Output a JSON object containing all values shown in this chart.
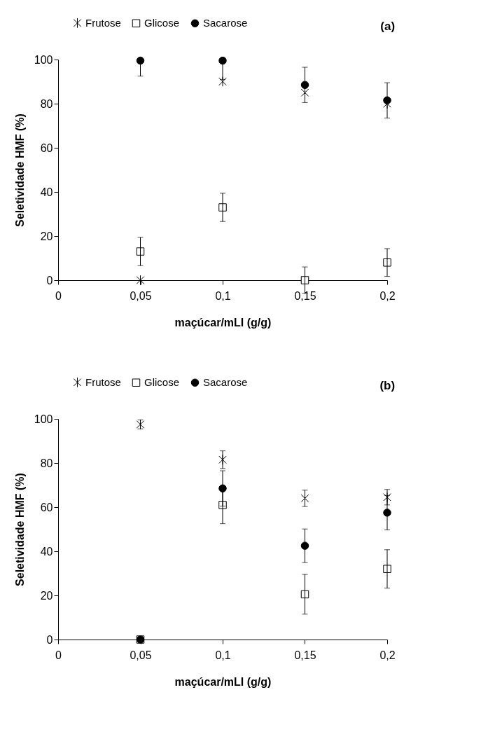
{
  "chart_data": [
    {
      "type": "scatter",
      "title": "(a)",
      "xlabel": "maçúcar/mLI (g/g)",
      "ylabel": "Seletividade HMF (%)",
      "x": [
        0.05,
        0.1,
        0.15,
        0.2
      ],
      "xlim": [
        0,
        0.2
      ],
      "ylim": [
        0,
        100
      ],
      "xticks": [
        0,
        {
          "value": 0.05,
          "label": "0,05"
        },
        {
          "value": 0.1,
          "label": "0,1"
        },
        {
          "value": 0.15,
          "label": "0,15"
        },
        {
          "value": 0.2,
          "label": "0,2"
        }
      ],
      "yticks": [
        0,
        20,
        40,
        60,
        80,
        100
      ],
      "grid": false,
      "legend": "top",
      "series": [
        {
          "name": "Frutose",
          "color": "#000000",
          "marker": "cross",
          "values": [
            0,
            90,
            85,
            80
          ],
          "errors": [
            null,
            null,
            null,
            null
          ]
        },
        {
          "name": "Glicose",
          "color": "#000000",
          "marker": "square",
          "values": [
            13,
            33,
            0,
            8
          ],
          "errors": [
            6.4,
            6.4,
            6,
            6.3
          ]
        },
        {
          "name": "Sacarose",
          "color": "#000000",
          "marker": "circle",
          "values": [
            99.5,
            99.5,
            88.5,
            81.5
          ],
          "errors": [
            [
              92.5,
              99.5
            ],
            [
              91,
              99.5
            ],
            8,
            8
          ]
        }
      ]
    },
    {
      "type": "scatter",
      "title": "(b)",
      "xlabel": "maçúcar/mLI (g/g)",
      "ylabel": "Seletividade HMF (%)",
      "x": [
        0.05,
        0.1,
        0.15,
        0.2
      ],
      "xlim": [
        0,
        0.2
      ],
      "ylim": [
        0,
        100
      ],
      "xticks": [
        0,
        {
          "value": 0.05,
          "label": "0,05"
        },
        {
          "value": 0.1,
          "label": "0,1"
        },
        {
          "value": 0.15,
          "label": "0,15"
        },
        {
          "value": 0.2,
          "label": "0,2"
        }
      ],
      "yticks": [
        0,
        20,
        40,
        60,
        80,
        100
      ],
      "grid": false,
      "legend": "top",
      "series": [
        {
          "name": "Frutose",
          "color": "#000000",
          "marker": "cross",
          "values": [
            97.5,
            81.5,
            64,
            64.5
          ],
          "errors": [
            2,
            4,
            3.7,
            3.5
          ]
        },
        {
          "name": "Glicose",
          "color": "#000000",
          "marker": "square",
          "values": [
            0,
            61,
            20.5,
            32
          ],
          "errors": [
            null,
            8.5,
            9,
            8.7
          ]
        },
        {
          "name": "Sacarose",
          "color": "#000000",
          "marker": "circle",
          "values": [
            0,
            68.5,
            42.5,
            57.5
          ],
          "errors": [
            null,
            8,
            7.6,
            7.8
          ]
        }
      ]
    }
  ]
}
